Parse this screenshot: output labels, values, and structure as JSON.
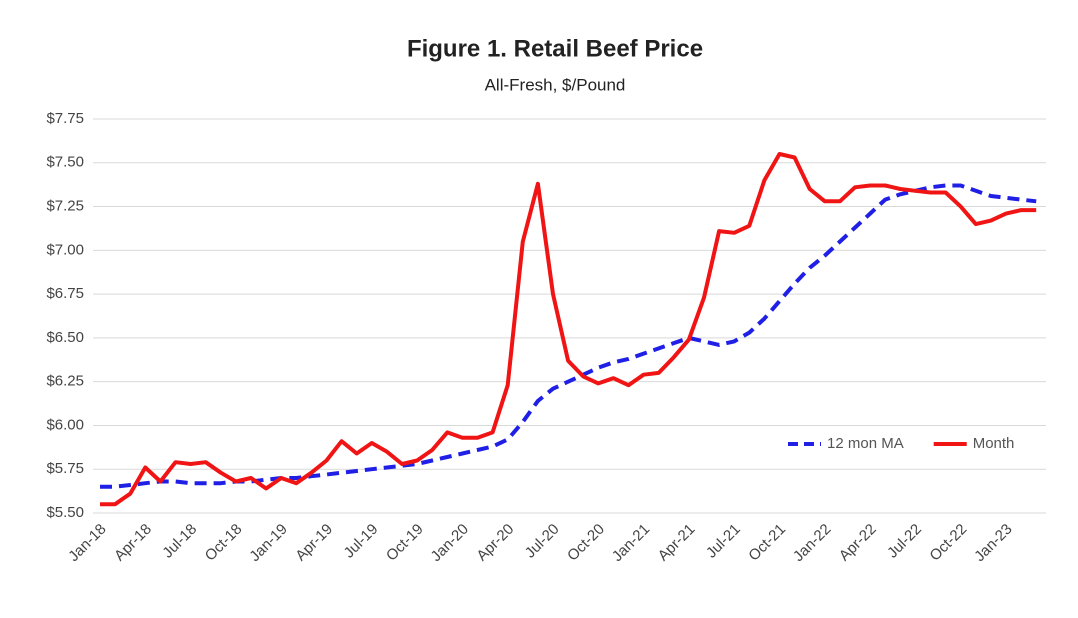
{
  "chart_data": {
    "type": "line",
    "title": "Figure 1. Retail Beef Price",
    "subtitle": "All-Fresh, $/Pound",
    "categories": [
      "Jan-18",
      null,
      null,
      "Apr-18",
      null,
      null,
      "Jul-18",
      null,
      null,
      "Oct-18",
      null,
      null,
      "Jan-19",
      null,
      null,
      "Apr-19",
      null,
      null,
      "Jul-19",
      null,
      null,
      "Oct-19",
      null,
      null,
      "Jan-20",
      null,
      null,
      "Apr-20",
      null,
      null,
      "Jul-20",
      null,
      null,
      "Oct-20",
      null,
      null,
      "Jan-21",
      null,
      null,
      "Apr-21",
      null,
      null,
      "Jul-21",
      null,
      null,
      "Oct-21",
      null,
      null,
      "Jan-22",
      null,
      null,
      "Apr-22",
      null,
      null,
      "Jul-22",
      null,
      null,
      "Oct-22",
      null,
      null,
      "Jan-23",
      null,
      null
    ],
    "series": [
      {
        "name": "12 mon MA",
        "color": "#1f1fe6",
        "dashed": true,
        "values": [
          5.65,
          5.65,
          5.66,
          5.67,
          5.68,
          5.68,
          5.67,
          5.67,
          5.67,
          5.68,
          5.68,
          5.69,
          5.7,
          5.7,
          5.71,
          5.72,
          5.73,
          5.74,
          5.75,
          5.76,
          5.77,
          5.78,
          5.8,
          5.82,
          5.84,
          5.86,
          5.88,
          5.92,
          6.02,
          6.14,
          6.21,
          6.25,
          6.29,
          6.33,
          6.36,
          6.38,
          6.41,
          6.44,
          6.47,
          6.5,
          6.48,
          6.46,
          6.48,
          6.53,
          6.61,
          6.71,
          6.81,
          6.9,
          6.97,
          7.05,
          7.13,
          7.21,
          7.29,
          7.32,
          7.34,
          7.36,
          7.37,
          7.37,
          7.34,
          7.31,
          7.3,
          7.29,
          7.28
        ]
      },
      {
        "name": "Month",
        "color": "#f01414",
        "dashed": false,
        "values": [
          5.55,
          5.55,
          5.61,
          5.76,
          5.68,
          5.79,
          5.78,
          5.79,
          5.73,
          5.68,
          5.7,
          5.64,
          5.7,
          5.67,
          5.73,
          5.8,
          5.91,
          5.84,
          5.9,
          5.85,
          5.78,
          5.8,
          5.86,
          5.96,
          5.93,
          5.93,
          5.96,
          6.23,
          7.05,
          7.38,
          6.75,
          6.37,
          6.28,
          6.24,
          6.27,
          6.23,
          6.29,
          6.3,
          6.39,
          6.49,
          6.73,
          7.11,
          7.1,
          7.14,
          7.4,
          7.55,
          7.53,
          7.35,
          7.28,
          7.28,
          7.36,
          7.37,
          7.37,
          7.35,
          7.34,
          7.33,
          7.33,
          7.25,
          7.15,
          7.17,
          7.21,
          7.23,
          7.23
        ]
      }
    ],
    "ylim": [
      5.5,
      7.75
    ],
    "yticks": [
      {
        "value": 5.5,
        "label": "$5.50"
      },
      {
        "value": 5.75,
        "label": "$5.75"
      },
      {
        "value": 6,
        "label": "$6.00"
      },
      {
        "value": 6.25,
        "label": "$6.25"
      },
      {
        "value": 6.5,
        "label": "$6.50"
      },
      {
        "value": 6.75,
        "label": "$6.75"
      },
      {
        "value": 7,
        "label": "$7.00"
      },
      {
        "value": 7.25,
        "label": "$7.25"
      },
      {
        "value": 7.5,
        "label": "$7.50"
      },
      {
        "value": 7.75,
        "label": "$7.75"
      }
    ],
    "grid": true,
    "legend": "lower right"
  }
}
